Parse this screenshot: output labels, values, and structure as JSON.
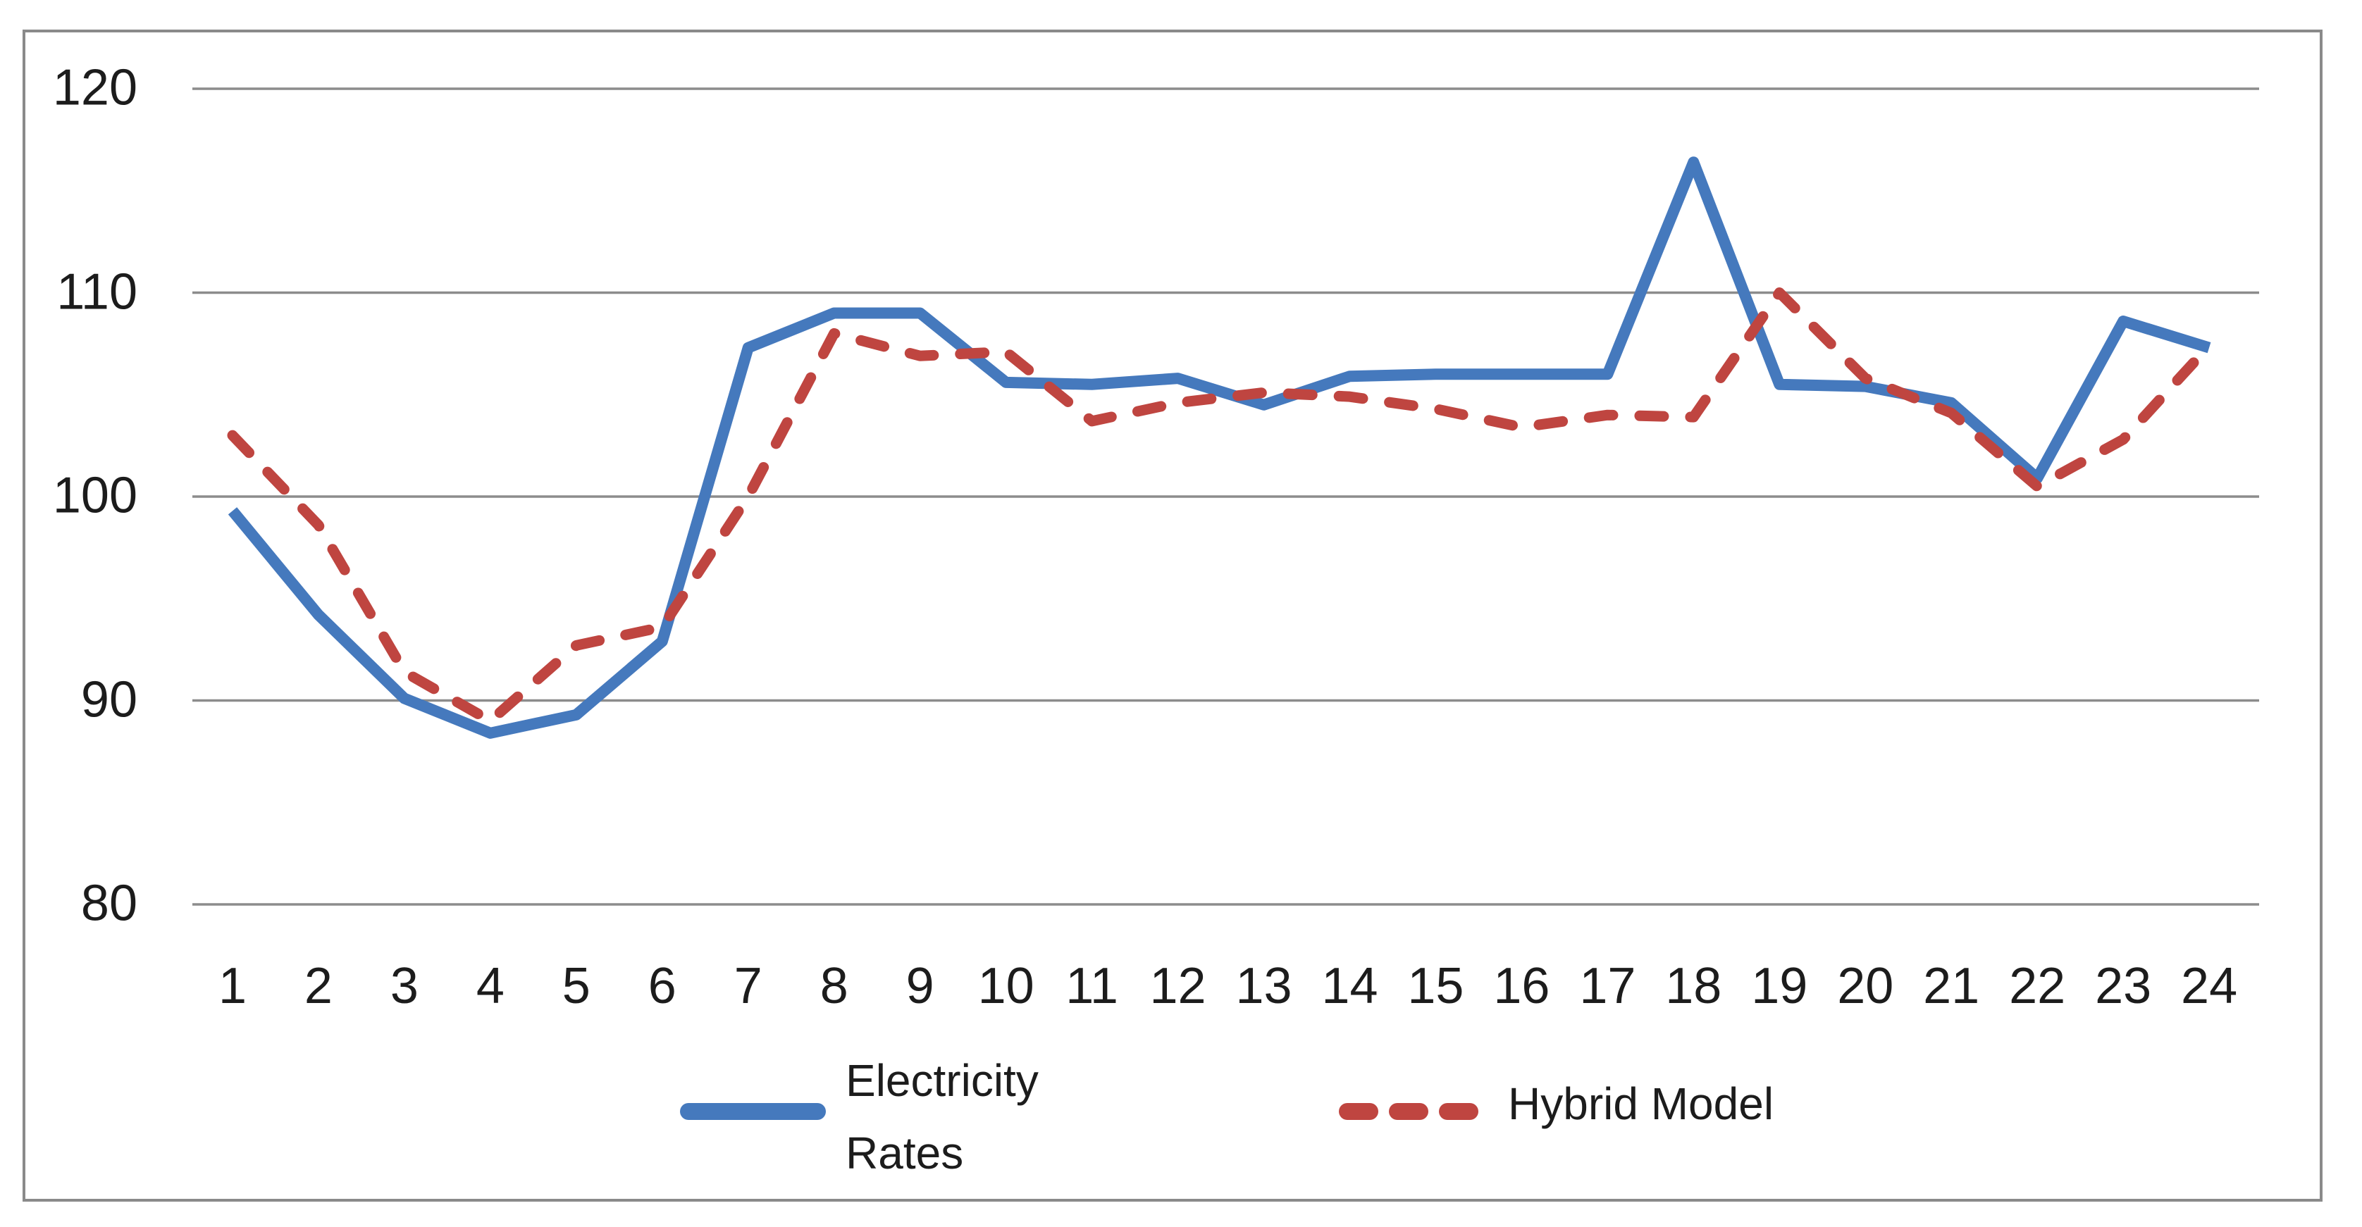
{
  "chart_data": {
    "type": "line",
    "title": "",
    "xlabel": "",
    "ylabel": "",
    "x": [
      1,
      2,
      3,
      4,
      5,
      6,
      7,
      8,
      9,
      10,
      11,
      12,
      13,
      14,
      15,
      16,
      17,
      18,
      19,
      20,
      21,
      22,
      23,
      24
    ],
    "series": [
      {
        "name": "Electricity Rates",
        "color": "#4579BD",
        "line_style": "solid",
        "values": [
          99.3,
          94.2,
          90.1,
          88.4,
          89.3,
          92.9,
          107.3,
          109.0,
          109.0,
          105.6,
          105.5,
          105.8,
          104.5,
          105.9,
          106.0,
          106.0,
          106.0,
          116.4,
          105.5,
          105.4,
          104.6,
          100.9,
          108.6,
          107.3
        ]
      },
      {
        "name": "Hybrid Model",
        "color": "#BF4540",
        "line_style": "dashed",
        "values": [
          103.0,
          98.6,
          91.4,
          89.0,
          92.7,
          93.6,
          100.0,
          108.0,
          106.9,
          107.1,
          103.7,
          104.6,
          105.1,
          104.9,
          104.3,
          103.4,
          104.0,
          103.9,
          110.0,
          105.8,
          104.1,
          100.5,
          102.8,
          107.4
        ]
      }
    ],
    "yticks": [
      120,
      110,
      100,
      90,
      80
    ],
    "ylim": [
      76,
      122
    ],
    "grid": true,
    "grid_color": "#8C8C8C",
    "frame_color": "#8A8A8A",
    "legend_position": "bottom-center"
  },
  "legend": {
    "electricity_label_line1": "Electricity",
    "electricity_label_line2": "Rates",
    "hybrid_label": "Hybrid Model"
  }
}
